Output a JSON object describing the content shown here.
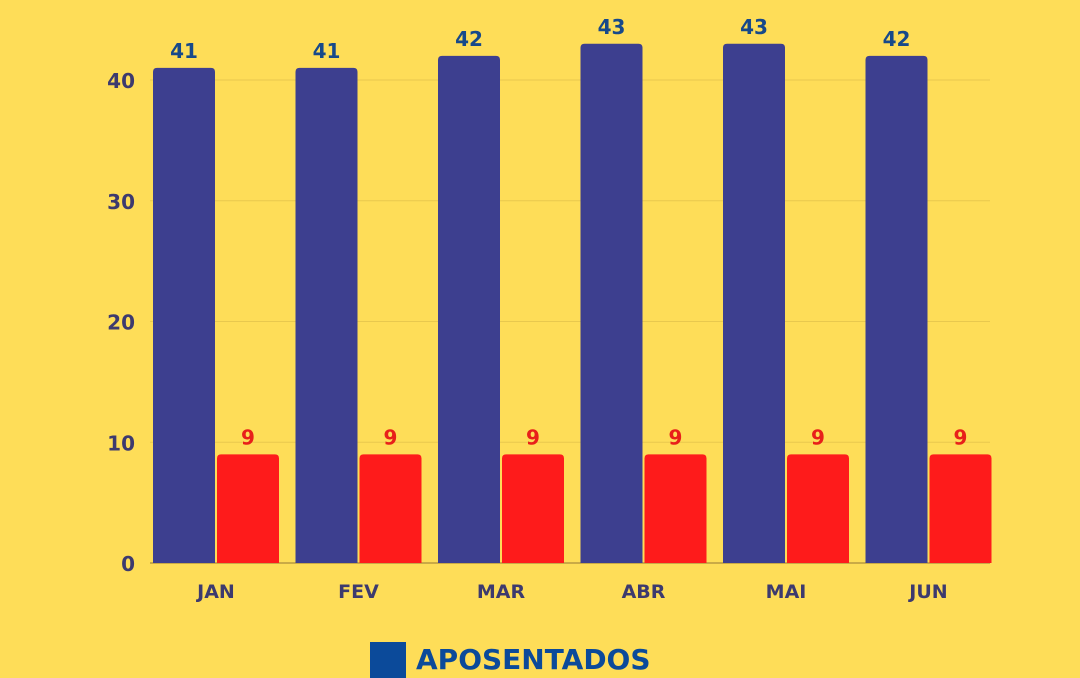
{
  "chart_data": {
    "type": "bar",
    "categories": [
      "JAN",
      "FEV",
      "MAR",
      "ABR",
      "MAI",
      "JUN"
    ],
    "series": [
      {
        "name": "APOSENTADOS",
        "values": [
          41,
          41,
          42,
          43,
          43,
          42
        ],
        "color": "#3d3f8f",
        "label_color": "#17498a"
      },
      {
        "values": [
          9,
          9,
          9,
          9,
          9,
          9
        ],
        "color": "#fe1b1b",
        "label_color": "#e8201a"
      }
    ],
    "yticks": [
      0,
      10,
      20,
      30,
      40
    ],
    "ylim": [
      0,
      40
    ],
    "grid": true,
    "legend_position": "bottom",
    "legend_swatch_color": "#0b4a9a",
    "background": "#fedd58"
  }
}
